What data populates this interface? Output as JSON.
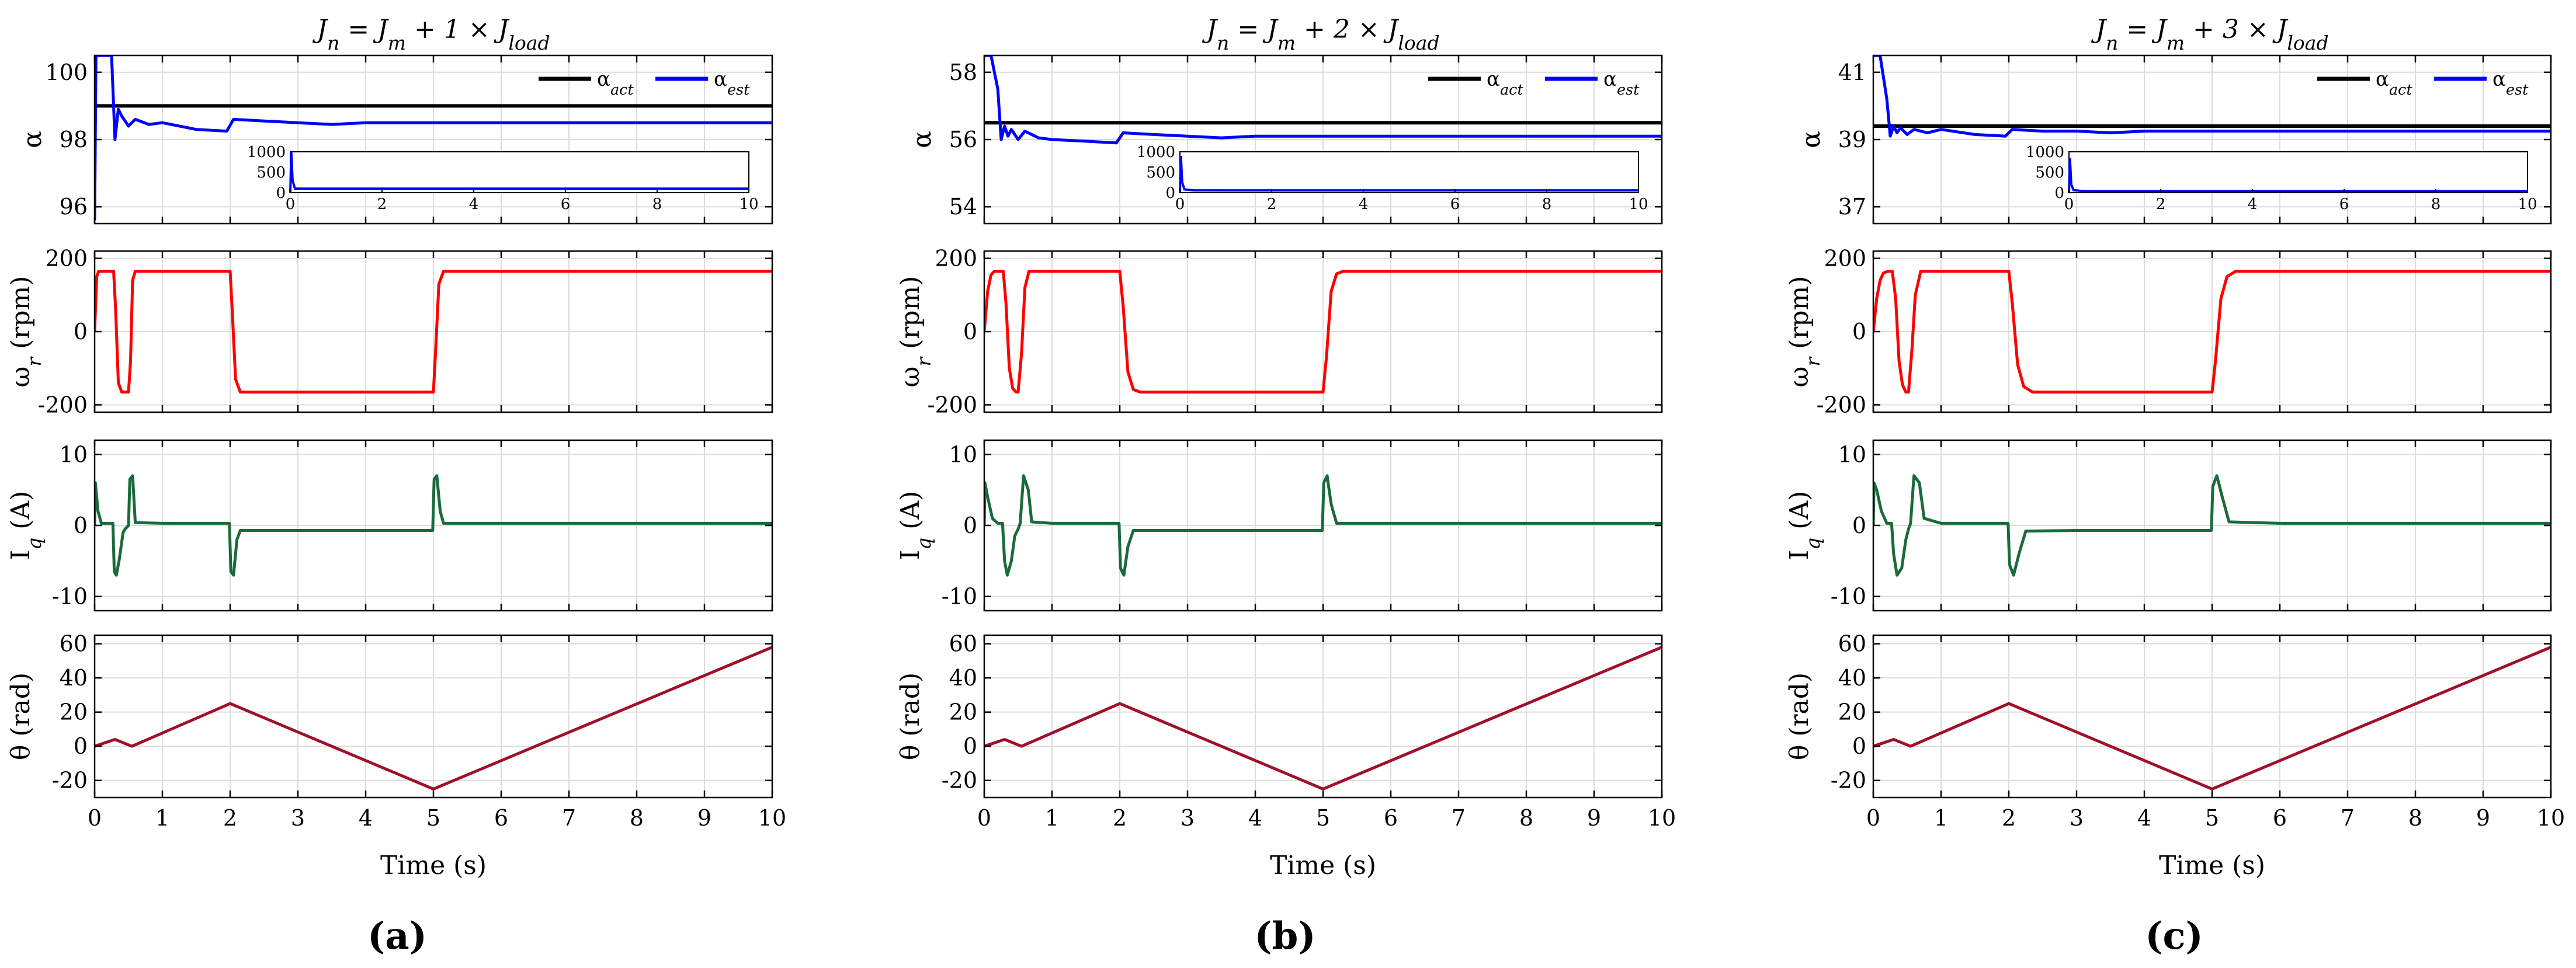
{
  "figure": {
    "xlabel": "Time (s)",
    "xlim": [
      0,
      10
    ],
    "xticks": [
      0,
      1,
      2,
      3,
      4,
      5,
      6,
      7,
      8,
      9,
      10
    ],
    "colors": {
      "alpha_act": "#000000",
      "alpha_est": "#0000ff",
      "speed": "#ff0000",
      "current": "#1a6b3a",
      "position": "#a0102a",
      "grid": "#dcdcdc",
      "axis": "#000000"
    }
  },
  "chart_data": [
    {
      "type": "line",
      "panel_label": "(a)",
      "title": "J_n = J_m + 1 × J_load",
      "alpha": {
        "ylabel": "α",
        "ylim": [
          95.5,
          100.5
        ],
        "yticks": [
          96,
          98,
          100
        ],
        "legend": [
          "α_act",
          "α_est"
        ],
        "actual": 99,
        "estimate": {
          "x": [
            0,
            0.02,
            0.05,
            0.08,
            0.1,
            0.15,
            0.2,
            0.25,
            0.3,
            0.35,
            0.4,
            0.5,
            0.6,
            0.8,
            1.0,
            1.5,
            1.95,
            2.05,
            2.5,
            3.0,
            3.5,
            4.0,
            5.0,
            6.0,
            7.0,
            8.0,
            9.0,
            10.0
          ],
          "y": [
            95.6,
            100.5,
            100.5,
            100.5,
            100.5,
            100.5,
            100.5,
            100.5,
            98.0,
            98.9,
            98.7,
            98.4,
            98.6,
            98.45,
            98.5,
            98.3,
            98.25,
            98.6,
            98.55,
            98.5,
            98.45,
            98.5,
            98.5,
            98.5,
            98.5,
            98.5,
            98.5,
            98.5
          ]
        },
        "inset": {
          "xlim": [
            0,
            10
          ],
          "xticks": [
            0,
            2,
            4,
            6,
            8,
            10
          ],
          "ylim": [
            0,
            1000
          ],
          "yticks": [
            0,
            500,
            1000
          ],
          "x": [
            0,
            0.02,
            0.05,
            0.1,
            0.3,
            1,
            10
          ],
          "y": [
            0,
            1000,
            300,
            100,
            99,
            98.5,
            98.5
          ]
        }
      },
      "speed": {
        "ylabel": "ω_r (rpm)",
        "ylim": [
          -220,
          220
        ],
        "yticks": [
          -200,
          0,
          200
        ],
        "x": [
          0,
          0.03,
          0.06,
          0.1,
          0.2,
          0.28,
          0.31,
          0.35,
          0.4,
          0.45,
          0.5,
          0.53,
          0.56,
          0.6,
          1.0,
          2.0,
          2.03,
          2.08,
          2.15,
          2.2,
          3.0,
          5.0,
          5.03,
          5.08,
          5.15,
          5.2,
          6.0,
          10.0
        ],
        "y": [
          0,
          150,
          165,
          165,
          165,
          165,
          60,
          -140,
          -165,
          -165,
          -165,
          -80,
          140,
          165,
          165,
          165,
          60,
          -130,
          -165,
          -165,
          -165,
          -165,
          -60,
          130,
          165,
          165,
          165,
          165
        ]
      },
      "current": {
        "ylabel": "I_q (A)",
        "ylim": [
          -12,
          12
        ],
        "yticks": [
          -10,
          0,
          10
        ],
        "x": [
          0,
          0.01,
          0.05,
          0.1,
          0.15,
          0.27,
          0.29,
          0.32,
          0.36,
          0.42,
          0.45,
          0.5,
          0.52,
          0.56,
          0.6,
          1.0,
          1.99,
          2.01,
          2.05,
          2.1,
          2.15,
          3.0,
          4.99,
          5.01,
          5.05,
          5.1,
          5.15,
          6.0,
          10.0
        ],
        "y": [
          0,
          6,
          2,
          0.3,
          0.3,
          0.3,
          -6.5,
          -7,
          -5,
          -1,
          -0.5,
          0,
          6.5,
          7,
          0.4,
          0.3,
          0.3,
          -6.5,
          -7,
          -2,
          -0.7,
          -0.7,
          -0.7,
          6.5,
          7,
          2,
          0.3,
          0.3,
          0.3
        ]
      },
      "position": {
        "ylabel": "θ (rad)",
        "ylim": [
          -30,
          65
        ],
        "yticks": [
          -20,
          0,
          20,
          40,
          60
        ],
        "x": [
          0,
          0.3,
          0.55,
          2.0,
          5.0,
          10.0
        ],
        "y": [
          0,
          4,
          0,
          25,
          -25,
          58
        ]
      }
    },
    {
      "type": "line",
      "panel_label": "(b)",
      "title": "J_n = J_m + 2 × J_load",
      "alpha": {
        "ylabel": "α",
        "ylim": [
          53.5,
          58.5
        ],
        "yticks": [
          54,
          56,
          58
        ],
        "legend": [
          "α_act",
          "α_est"
        ],
        "actual": 56.5,
        "estimate": {
          "x": [
            0,
            0.02,
            0.05,
            0.1,
            0.2,
            0.25,
            0.3,
            0.35,
            0.4,
            0.5,
            0.6,
            0.8,
            1.0,
            1.5,
            1.95,
            2.05,
            2.5,
            3.0,
            3.5,
            4.0,
            5.0,
            6.0,
            7.0,
            8.0,
            9.0,
            10.0
          ],
          "y": [
            58.5,
            58.5,
            58.5,
            58.5,
            57.5,
            56.0,
            56.4,
            56.1,
            56.3,
            56.0,
            56.25,
            56.05,
            56.0,
            55.95,
            55.9,
            56.2,
            56.15,
            56.1,
            56.05,
            56.1,
            56.1,
            56.1,
            56.1,
            56.1,
            56.1,
            56.1
          ]
        },
        "inset": {
          "xlim": [
            0,
            10
          ],
          "xticks": [
            0,
            2,
            4,
            6,
            8,
            10
          ],
          "ylim": [
            0,
            1000
          ],
          "yticks": [
            0,
            500,
            1000
          ],
          "x": [
            0,
            0.02,
            0.05,
            0.1,
            0.3,
            1,
            10
          ],
          "y": [
            0,
            900,
            250,
            80,
            57,
            56,
            56
          ]
        }
      },
      "speed": {
        "ylabel": "ω_r (rpm)",
        "ylim": [
          -220,
          220
        ],
        "yticks": [
          -200,
          0,
          200
        ],
        "x": [
          0,
          0.05,
          0.1,
          0.15,
          0.2,
          0.28,
          0.32,
          0.37,
          0.42,
          0.47,
          0.5,
          0.55,
          0.6,
          0.66,
          1.0,
          2.0,
          2.05,
          2.12,
          2.2,
          2.3,
          3.0,
          5.0,
          5.05,
          5.12,
          5.2,
          5.3,
          6.0,
          10.0
        ],
        "y": [
          0,
          110,
          155,
          165,
          165,
          165,
          80,
          -100,
          -155,
          -165,
          -165,
          -60,
          120,
          165,
          165,
          165,
          70,
          -110,
          -158,
          -165,
          -165,
          -165,
          -70,
          110,
          158,
          165,
          165,
          165
        ]
      },
      "current": {
        "ylabel": "I_q (A)",
        "ylim": [
          -12,
          12
        ],
        "yticks": [
          -10,
          0,
          10
        ],
        "x": [
          0,
          0.01,
          0.05,
          0.12,
          0.2,
          0.27,
          0.3,
          0.34,
          0.4,
          0.45,
          0.5,
          0.53,
          0.58,
          0.65,
          0.7,
          1.0,
          1.99,
          2.01,
          2.06,
          2.12,
          2.2,
          3.0,
          4.99,
          5.01,
          5.06,
          5.12,
          5.2,
          6.0,
          10.0
        ],
        "y": [
          0,
          6,
          4,
          1,
          0.3,
          0.3,
          -5,
          -7,
          -5,
          -1.5,
          -0.5,
          0.3,
          7,
          5,
          0.5,
          0.3,
          0.3,
          -6,
          -7,
          -3,
          -0.7,
          -0.7,
          -0.7,
          6,
          7,
          3,
          0.3,
          0.3,
          0.3
        ]
      },
      "position": {
        "ylabel": "θ (rad)",
        "ylim": [
          -30,
          65
        ],
        "yticks": [
          -20,
          0,
          20,
          40,
          60
        ],
        "x": [
          0,
          0.3,
          0.55,
          2.0,
          5.0,
          10.0
        ],
        "y": [
          0,
          4,
          0,
          25,
          -25,
          58
        ]
      }
    },
    {
      "type": "line",
      "panel_label": "(c)",
      "title": "J_n = J_m + 3 × J_load",
      "alpha": {
        "ylabel": "α",
        "ylim": [
          36.5,
          41.5
        ],
        "yticks": [
          37,
          39,
          41
        ],
        "legend": [
          "α_act",
          "α_est"
        ],
        "actual": 39.4,
        "estimate": {
          "x": [
            0,
            0.02,
            0.05,
            0.1,
            0.2,
            0.25,
            0.3,
            0.35,
            0.4,
            0.5,
            0.6,
            0.8,
            1.0,
            1.5,
            1.95,
            2.05,
            2.5,
            3.0,
            3.5,
            4.0,
            5.0,
            6.0,
            7.0,
            8.0,
            9.0,
            10.0
          ],
          "y": [
            41.5,
            41.5,
            41.5,
            41.5,
            40.2,
            39.1,
            39.4,
            39.2,
            39.35,
            39.15,
            39.3,
            39.2,
            39.3,
            39.15,
            39.1,
            39.3,
            39.25,
            39.25,
            39.2,
            39.25,
            39.25,
            39.25,
            39.25,
            39.25,
            39.25,
            39.25
          ]
        },
        "inset": {
          "xlim": [
            0,
            10
          ],
          "xticks": [
            0,
            2,
            4,
            6,
            8,
            10
          ],
          "ylim": [
            0,
            1000
          ],
          "yticks": [
            0,
            500,
            1000
          ],
          "x": [
            0,
            0.02,
            0.05,
            0.1,
            0.3,
            1,
            10
          ],
          "y": [
            0,
            850,
            200,
            60,
            40,
            39,
            39
          ]
        }
      },
      "speed": {
        "ylabel": "ω_r (rpm)",
        "ylim": [
          -220,
          220
        ],
        "yticks": [
          -200,
          0,
          200
        ],
        "x": [
          0,
          0.05,
          0.1,
          0.15,
          0.22,
          0.28,
          0.33,
          0.38,
          0.43,
          0.48,
          0.52,
          0.57,
          0.62,
          0.7,
          1.0,
          2.0,
          2.05,
          2.13,
          2.22,
          2.35,
          3.0,
          5.0,
          5.05,
          5.13,
          5.22,
          5.35,
          6.0,
          10.0
        ],
        "y": [
          0,
          90,
          140,
          160,
          165,
          165,
          90,
          -80,
          -145,
          -165,
          -165,
          -50,
          100,
          165,
          165,
          165,
          80,
          -90,
          -150,
          -165,
          -165,
          -165,
          -80,
          90,
          150,
          165,
          165,
          165
        ]
      },
      "current": {
        "ylabel": "I_q (A)",
        "ylim": [
          -12,
          12
        ],
        "yticks": [
          -10,
          0,
          10
        ],
        "x": [
          0,
          0.01,
          0.05,
          0.12,
          0.2,
          0.27,
          0.3,
          0.35,
          0.42,
          0.48,
          0.52,
          0.55,
          0.6,
          0.68,
          0.75,
          1.0,
          1.99,
          2.01,
          2.07,
          2.15,
          2.25,
          3.0,
          4.99,
          5.01,
          5.07,
          5.15,
          5.25,
          6.0,
          10.0
        ],
        "y": [
          0,
          6,
          5,
          2,
          0.3,
          0.3,
          -4,
          -7,
          -6,
          -2,
          -0.5,
          0.3,
          7,
          6,
          1,
          0.3,
          0.3,
          -5.5,
          -7,
          -4,
          -0.8,
          -0.7,
          -0.7,
          5.5,
          7,
          4,
          0.5,
          0.3,
          0.3
        ]
      },
      "position": {
        "ylabel": "θ (rad)",
        "ylim": [
          -30,
          65
        ],
        "yticks": [
          -20,
          0,
          20,
          40,
          60
        ],
        "x": [
          0,
          0.3,
          0.55,
          2.0,
          5.0,
          10.0
        ],
        "y": [
          0,
          4,
          0,
          25,
          -25,
          58
        ]
      }
    }
  ]
}
